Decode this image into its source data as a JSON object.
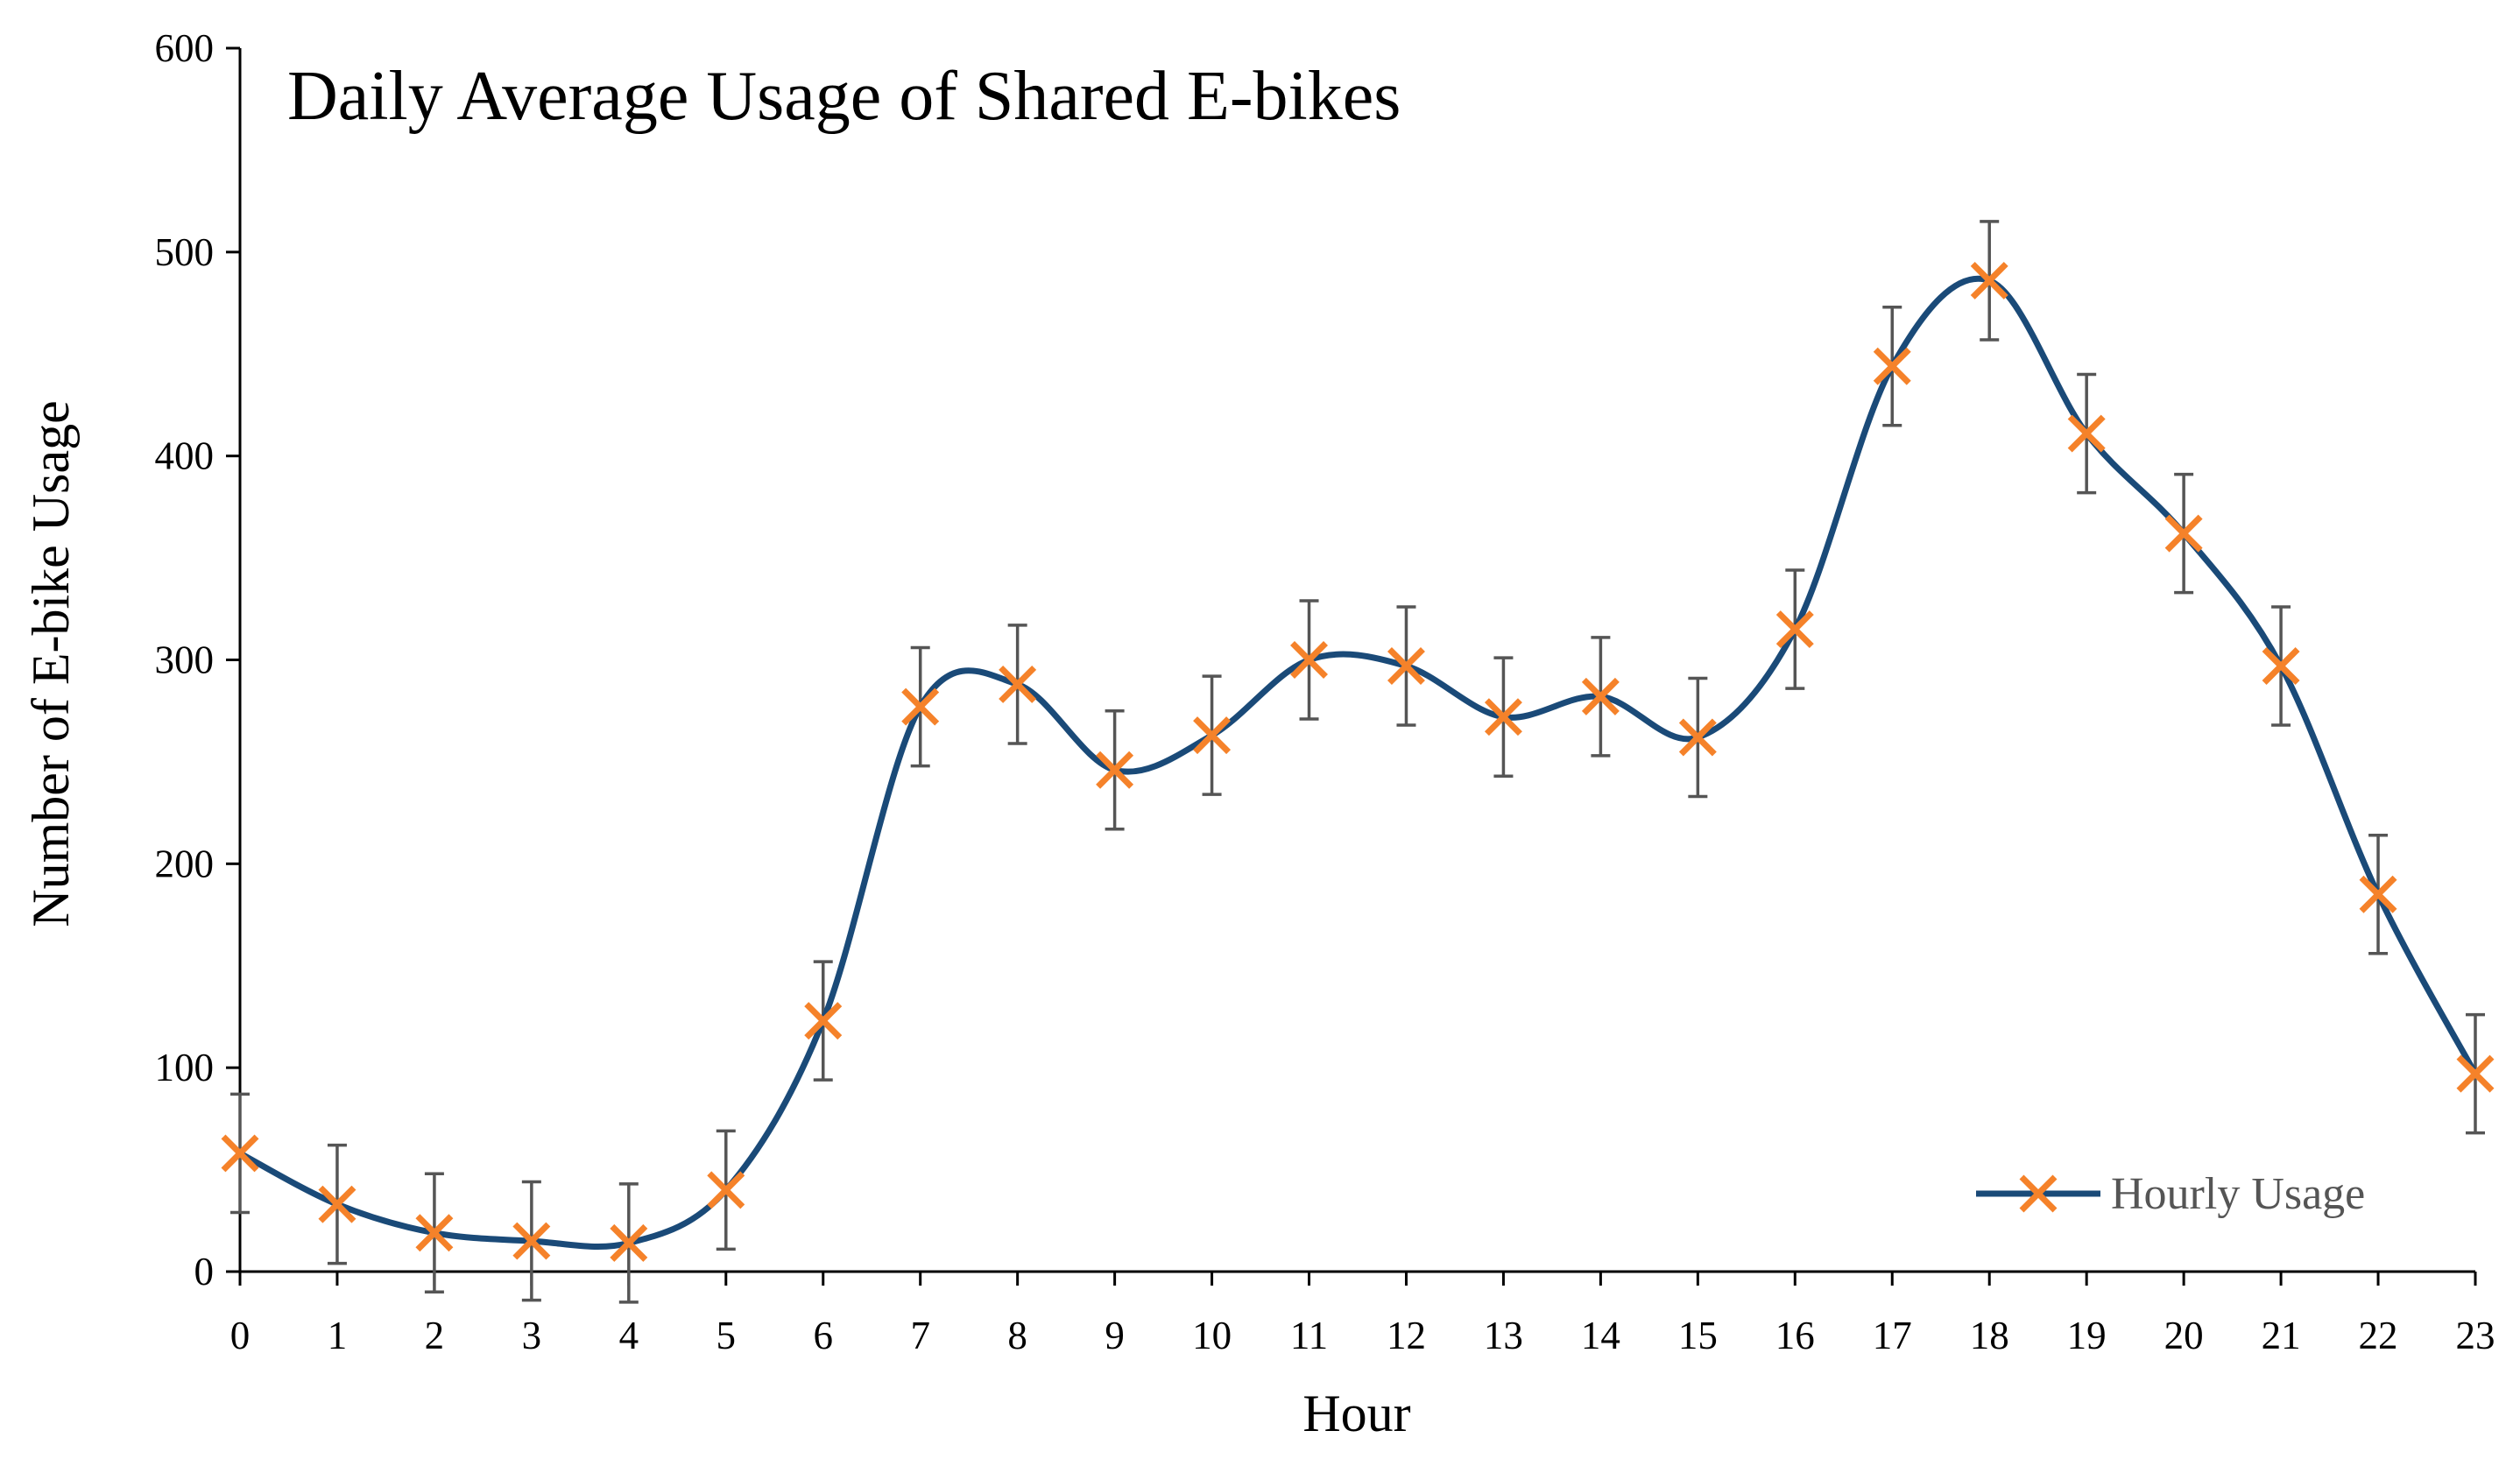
{
  "chart_data": {
    "type": "line",
    "title": "Daily Average Usage of Shared E-bikes",
    "xlabel": "Hour",
    "ylabel": "Number of E-bike Usage",
    "x": [
      0,
      1,
      2,
      3,
      4,
      5,
      6,
      7,
      8,
      9,
      10,
      11,
      12,
      13,
      14,
      15,
      16,
      17,
      18,
      19,
      20,
      21,
      22,
      23
    ],
    "x_tick_labels": [
      "0",
      "1",
      "2",
      "3",
      "4",
      "5",
      "6",
      "7",
      "8",
      "9",
      "10",
      "11",
      "12",
      "13",
      "14",
      "15",
      "16",
      "17",
      "18",
      "19",
      "20",
      "21",
      "22",
      "23"
    ],
    "y_ticks": [
      0,
      100,
      200,
      300,
      400,
      500,
      600
    ],
    "y_tick_labels": [
      "0",
      "100",
      "200",
      "300",
      "400",
      "500",
      "600"
    ],
    "ylim": [
      0,
      600
    ],
    "xlim": [
      0,
      23
    ],
    "grid": false,
    "legend_position": "bottom-right",
    "series": [
      {
        "name": "Hourly Usage",
        "values": [
          58,
          33,
          19,
          15,
          14,
          40,
          123,
          277,
          288,
          246,
          263,
          300,
          297,
          272,
          282,
          262,
          315,
          444,
          486,
          411,
          362,
          297,
          185,
          97
        ],
        "error": [
          29,
          29,
          29,
          29,
          29,
          29,
          29,
          29,
          29,
          29,
          29,
          29,
          29,
          29,
          29,
          29,
          29,
          29,
          29,
          29,
          29,
          29,
          29,
          29
        ],
        "line_color": "#1A4A78",
        "marker": "x",
        "marker_color": "#F5822A",
        "error_bar_color": "#555555",
        "smooth": true
      }
    ]
  }
}
